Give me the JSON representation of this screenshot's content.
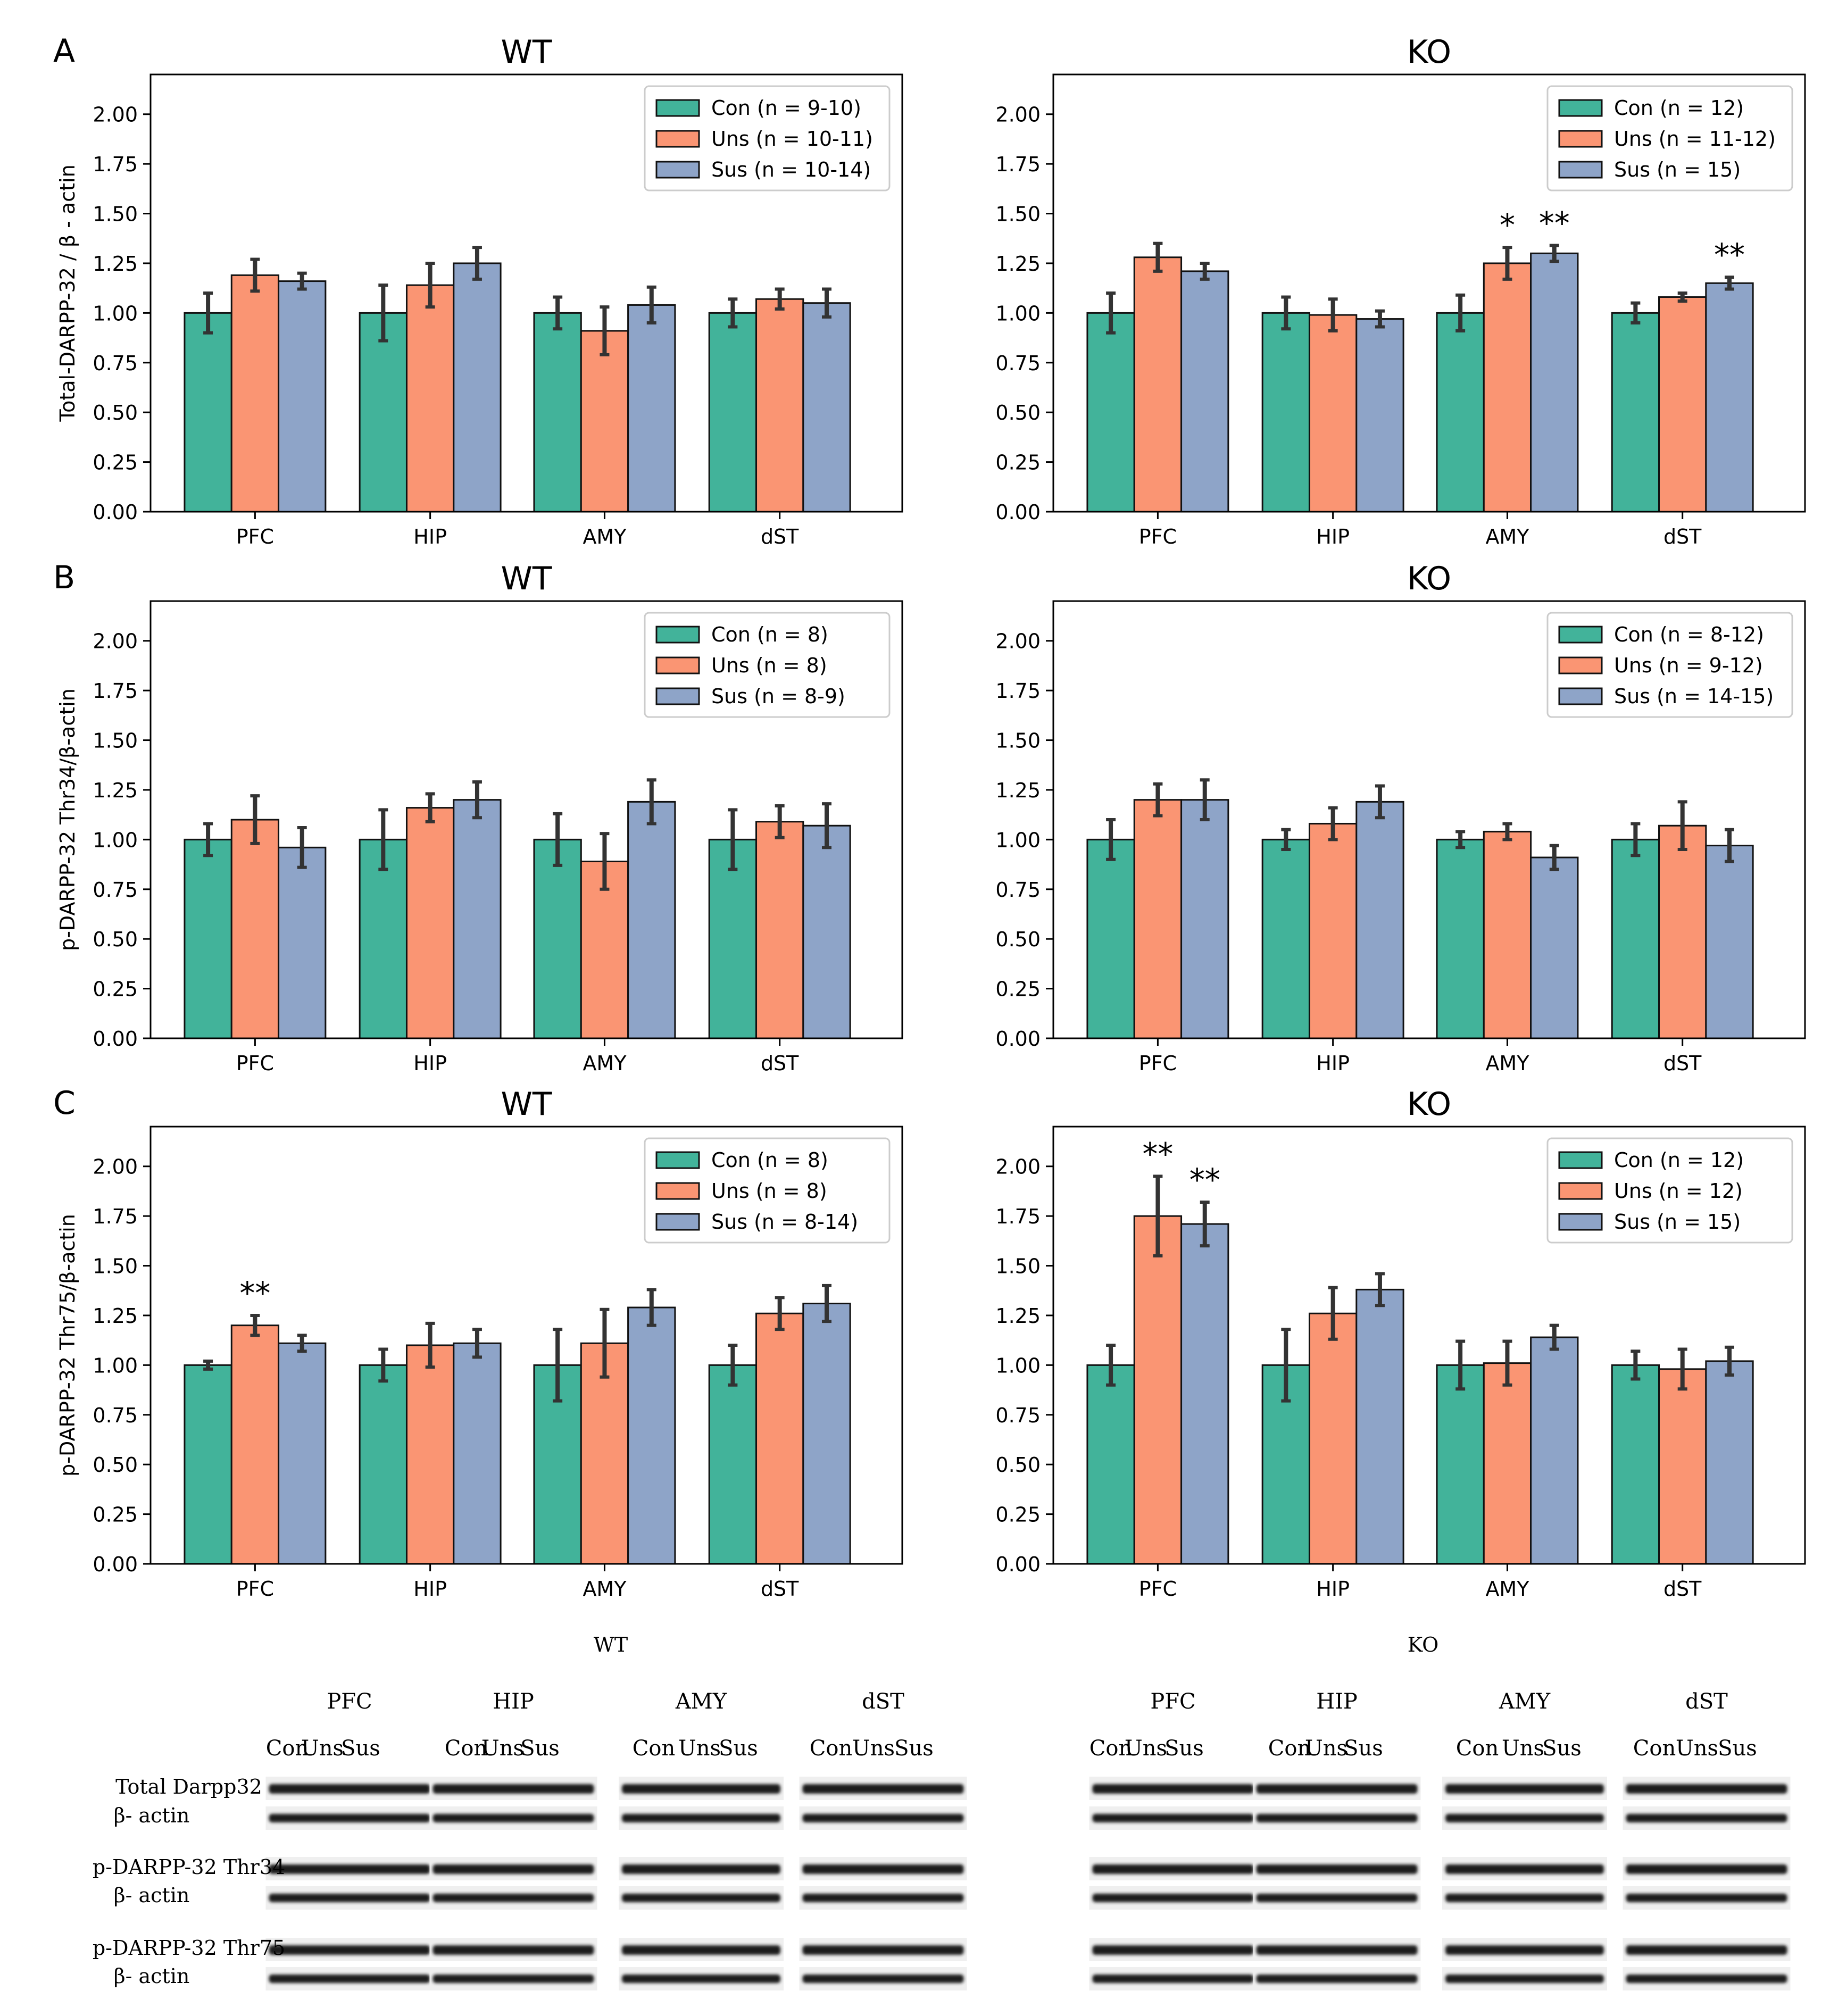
{
  "colors": {
    "con": "#42b39a",
    "uns": "#fa9573",
    "sus": "#8ea4c8",
    "err": "#333333",
    "axis": "#000000"
  },
  "groups": [
    "Con",
    "Uns",
    "Sus"
  ],
  "chart_data": [
    {
      "type": "bar",
      "panel_letter": "A",
      "title": "WT",
      "ylabel": "Total-DARPP-32 / β - actin",
      "categories": [
        "PFC",
        "HIP",
        "AMY",
        "dST"
      ],
      "ylim": [
        0,
        2.2
      ],
      "yticks": [
        "0.00",
        "0.25",
        "0.50",
        "0.75",
        "1.00",
        "1.25",
        "1.50",
        "1.75",
        "2.00"
      ],
      "legend": [
        "Con (n = 9-10)",
        "Uns (n = 10-11)",
        "Sus (n = 10-14)"
      ],
      "series": [
        {
          "name": "Con",
          "values": [
            1.0,
            1.0,
            1.0,
            1.0
          ],
          "errors": [
            0.1,
            0.14,
            0.08,
            0.07
          ]
        },
        {
          "name": "Uns",
          "values": [
            1.19,
            1.14,
            0.91,
            1.07
          ],
          "errors": [
            0.08,
            0.11,
            0.12,
            0.05
          ]
        },
        {
          "name": "Sus",
          "values": [
            1.16,
            1.25,
            1.04,
            1.05
          ],
          "errors": [
            0.04,
            0.08,
            0.09,
            0.07
          ]
        }
      ],
      "annotations": []
    },
    {
      "type": "bar",
      "panel_letter": "",
      "title": "KO",
      "ylabel": "",
      "categories": [
        "PFC",
        "HIP",
        "AMY",
        "dST"
      ],
      "ylim": [
        0,
        2.2
      ],
      "yticks": [
        "0.00",
        "0.25",
        "0.50",
        "0.75",
        "1.00",
        "1.25",
        "1.50",
        "1.75",
        "2.00"
      ],
      "legend": [
        "Con (n = 12)",
        "Uns (n = 11-12)",
        "Sus (n = 15)"
      ],
      "series": [
        {
          "name": "Con",
          "values": [
            1.0,
            1.0,
            1.0,
            1.0
          ],
          "errors": [
            0.1,
            0.08,
            0.09,
            0.05
          ]
        },
        {
          "name": "Uns",
          "values": [
            1.28,
            0.99,
            1.25,
            1.08
          ],
          "errors": [
            0.07,
            0.08,
            0.08,
            0.02
          ]
        },
        {
          "name": "Sus",
          "values": [
            1.21,
            0.97,
            1.3,
            1.15
          ],
          "errors": [
            0.04,
            0.04,
            0.04,
            0.03
          ]
        }
      ],
      "annotations": [
        {
          "category": 2,
          "series": 1,
          "text": "*"
        },
        {
          "category": 2,
          "series": 2,
          "text": "**"
        },
        {
          "category": 3,
          "series": 2,
          "text": "**"
        }
      ]
    },
    {
      "type": "bar",
      "panel_letter": "B",
      "title": "WT",
      "ylabel": "p-DARPP-32 Thr34/β-actin",
      "categories": [
        "PFC",
        "HIP",
        "AMY",
        "dST"
      ],
      "ylim": [
        0,
        2.2
      ],
      "yticks": [
        "0.00",
        "0.25",
        "0.50",
        "0.75",
        "1.00",
        "1.25",
        "1.50",
        "1.75",
        "2.00"
      ],
      "legend": [
        "Con (n = 8)",
        "Uns (n = 8)",
        "Sus (n = 8-9)"
      ],
      "series": [
        {
          "name": "Con",
          "values": [
            1.0,
            1.0,
            1.0,
            1.0
          ],
          "errors": [
            0.08,
            0.15,
            0.13,
            0.15
          ]
        },
        {
          "name": "Uns",
          "values": [
            1.1,
            1.16,
            0.89,
            1.09
          ],
          "errors": [
            0.12,
            0.07,
            0.14,
            0.08
          ]
        },
        {
          "name": "Sus",
          "values": [
            0.96,
            1.2,
            1.19,
            1.07
          ],
          "errors": [
            0.1,
            0.09,
            0.11,
            0.11
          ]
        }
      ],
      "annotations": []
    },
    {
      "type": "bar",
      "panel_letter": "",
      "title": "KO",
      "ylabel": "",
      "categories": [
        "PFC",
        "HIP",
        "AMY",
        "dST"
      ],
      "ylim": [
        0,
        2.2
      ],
      "yticks": [
        "0.00",
        "0.25",
        "0.50",
        "0.75",
        "1.00",
        "1.25",
        "1.50",
        "1.75",
        "2.00"
      ],
      "legend": [
        "Con (n = 8-12)",
        "Uns (n = 9-12)",
        "Sus (n = 14-15)"
      ],
      "series": [
        {
          "name": "Con",
          "values": [
            1.0,
            1.0,
            1.0,
            1.0
          ],
          "errors": [
            0.1,
            0.05,
            0.04,
            0.08
          ]
        },
        {
          "name": "Uns",
          "values": [
            1.2,
            1.08,
            1.04,
            1.07
          ],
          "errors": [
            0.08,
            0.08,
            0.04,
            0.12
          ]
        },
        {
          "name": "Sus",
          "values": [
            1.2,
            1.19,
            0.91,
            0.97
          ],
          "errors": [
            0.1,
            0.08,
            0.06,
            0.08
          ]
        }
      ],
      "annotations": []
    },
    {
      "type": "bar",
      "panel_letter": "C",
      "title": "WT",
      "ylabel": "p-DARPP-32 Thr75/β-actin",
      "categories": [
        "PFC",
        "HIP",
        "AMY",
        "dST"
      ],
      "ylim": [
        0,
        2.2
      ],
      "yticks": [
        "0.00",
        "0.25",
        "0.50",
        "0.75",
        "1.00",
        "1.25",
        "1.50",
        "1.75",
        "2.00"
      ],
      "legend": [
        "Con (n = 8)",
        "Uns (n = 8)",
        "Sus (n = 8-14)"
      ],
      "series": [
        {
          "name": "Con",
          "values": [
            1.0,
            1.0,
            1.0,
            1.0
          ],
          "errors": [
            0.02,
            0.08,
            0.18,
            0.1
          ]
        },
        {
          "name": "Uns",
          "values": [
            1.2,
            1.1,
            1.11,
            1.26
          ],
          "errors": [
            0.05,
            0.11,
            0.17,
            0.08
          ]
        },
        {
          "name": "Sus",
          "values": [
            1.11,
            1.11,
            1.29,
            1.31
          ],
          "errors": [
            0.04,
            0.07,
            0.09,
            0.09
          ]
        }
      ],
      "annotations": [
        {
          "category": 0,
          "series": 1,
          "text": "**"
        }
      ]
    },
    {
      "type": "bar",
      "panel_letter": "",
      "title": "KO",
      "ylabel": "",
      "categories": [
        "PFC",
        "HIP",
        "AMY",
        "dST"
      ],
      "ylim": [
        0,
        2.2
      ],
      "yticks": [
        "0.00",
        "0.25",
        "0.50",
        "0.75",
        "1.00",
        "1.25",
        "1.50",
        "1.75",
        "2.00"
      ],
      "legend": [
        "Con (n = 12)",
        "Uns (n = 12)",
        "Sus (n = 15)"
      ],
      "series": [
        {
          "name": "Con",
          "values": [
            1.0,
            1.0,
            1.0,
            1.0
          ],
          "errors": [
            0.1,
            0.18,
            0.12,
            0.07
          ]
        },
        {
          "name": "Uns",
          "values": [
            1.75,
            1.26,
            1.01,
            0.98
          ],
          "errors": [
            0.2,
            0.13,
            0.11,
            0.1
          ]
        },
        {
          "name": "Sus",
          "values": [
            1.71,
            1.38,
            1.14,
            1.02
          ],
          "errors": [
            0.11,
            0.08,
            0.06,
            0.07
          ]
        }
      ],
      "annotations": [
        {
          "category": 0,
          "series": 1,
          "text": "**"
        },
        {
          "category": 0,
          "series": 2,
          "text": "**"
        }
      ]
    }
  ],
  "blots": {
    "panels": [
      {
        "title": "WT",
        "regions": [
          "PFC",
          "HIP",
          "AMY",
          "dST"
        ]
      },
      {
        "title": "KO",
        "regions": [
          "PFC",
          "HIP",
          "AMY",
          "dST"
        ]
      }
    ],
    "rows": [
      {
        "label": "Total Darpp32",
        "sub_label": "β- actin"
      },
      {
        "label": "p-DARPP-32 Thr34",
        "sub_label": "β- actin"
      },
      {
        "label": "p-DARPP-32 Thr75",
        "sub_label": "β- actin"
      }
    ]
  }
}
